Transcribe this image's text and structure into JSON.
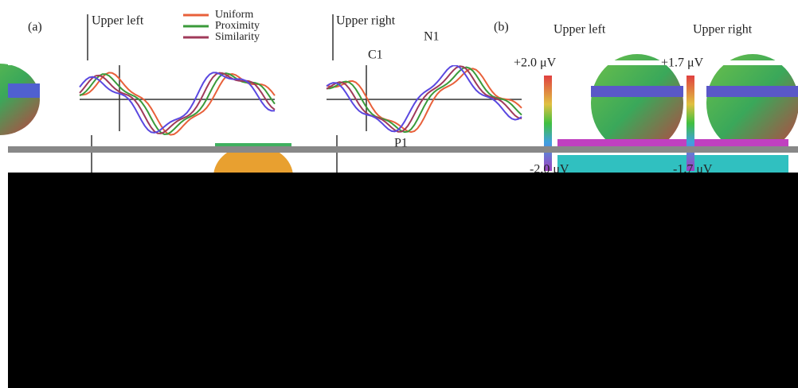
{
  "panel_a": {
    "label": "(a)",
    "left_title": "Upper left",
    "right_title": "Upper right",
    "legend": [
      {
        "name": "Uniform",
        "color": "#e8603a"
      },
      {
        "name": "Proximity",
        "color": "#3a9a3a"
      },
      {
        "name": "Similarity",
        "color": "#a03a5a"
      }
    ],
    "components": [
      "N1",
      "C1",
      "P1"
    ]
  },
  "panel_b": {
    "label": "(b)",
    "left_title": "Upper left",
    "right_title": "Upper right",
    "left_scale": [
      "+2.0 μV",
      "-2.0 μV"
    ],
    "right_scale": [
      "+1.7 μV",
      "-1.7 μV"
    ]
  }
}
